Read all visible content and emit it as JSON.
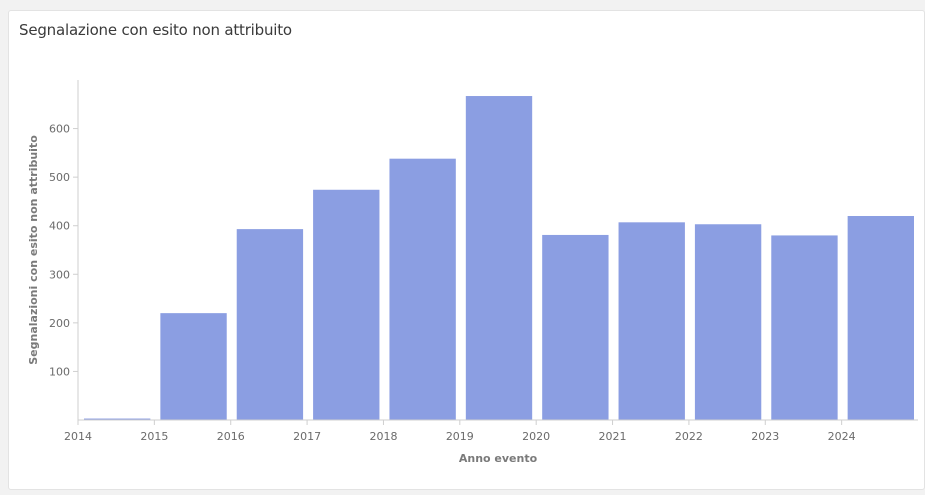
{
  "panel": {
    "title": "Segnalazione con esito non attribuito"
  },
  "chart_data": {
    "type": "bar",
    "title": "Segnalazione con esito non attribuito",
    "xlabel": "Anno evento",
    "ylabel": "Segnalazioni con esito non attribuito",
    "x_ticks": [
      "2014",
      "2015",
      "2016",
      "2017",
      "2018",
      "2019",
      "2020",
      "2021",
      "2022",
      "2023",
      "2024"
    ],
    "y_ticks": [
      100,
      200,
      300,
      400,
      500,
      600
    ],
    "ylim": [
      0,
      700
    ],
    "xlim": [
      "2014",
      "2025"
    ],
    "categories": [
      "2014",
      "2015",
      "2016",
      "2017",
      "2018",
      "2019",
      "2020",
      "2021",
      "2022",
      "2023",
      "2024"
    ],
    "values": [
      3,
      220,
      393,
      474,
      538,
      667,
      381,
      407,
      403,
      380,
      420
    ],
    "bar_color": "#8b9ee2",
    "grid": false
  }
}
